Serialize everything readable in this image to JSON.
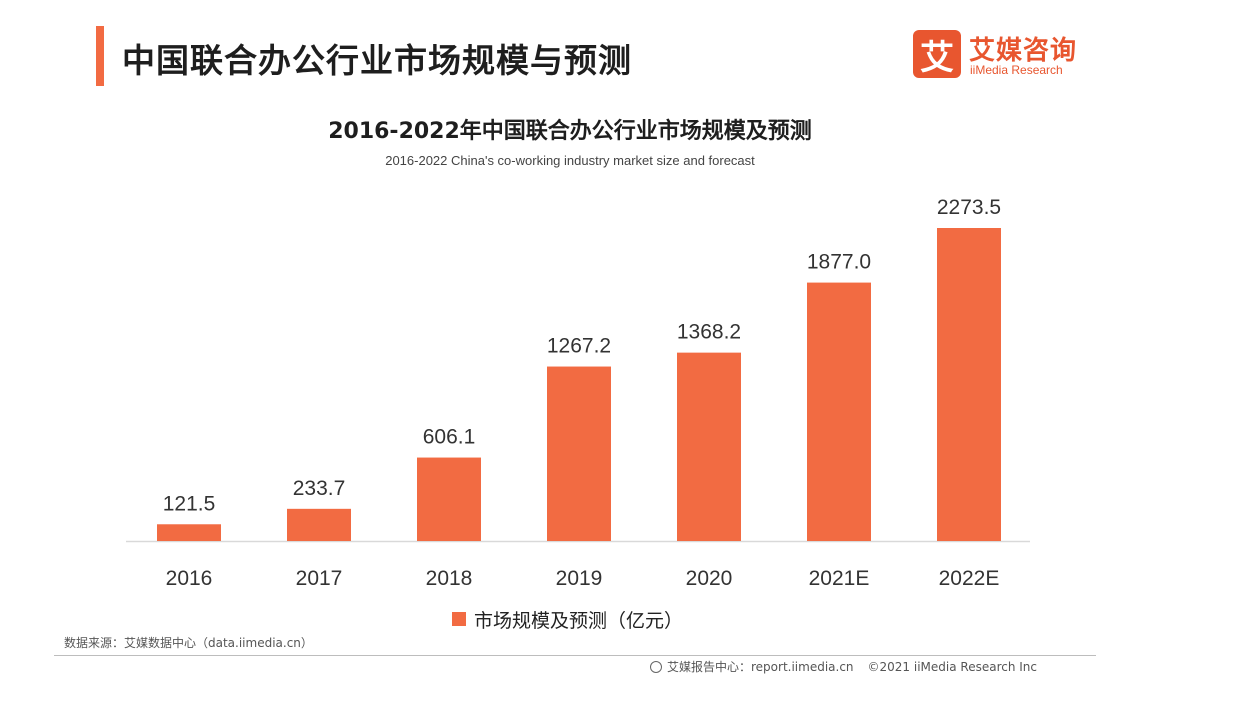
{
  "page": {
    "title": "中国联合办公行业市场规模与预测"
  },
  "logo": {
    "mark": "艾",
    "name_cn": "艾媒咨询",
    "name_en": "iiMedia Research"
  },
  "chart_data": {
    "type": "bar",
    "title": "2016-2022年中国联合办公行业市场规模及预测",
    "subtitle": "2016-2022 China's co-working industry market size and forecast",
    "categories": [
      "2016",
      "2017",
      "2018",
      "2019",
      "2020",
      "2021E",
      "2022E"
    ],
    "series": [
      {
        "name": "市场规模及预测（亿元）",
        "values": [
          121.5,
          233.7,
          606.1,
          1267.2,
          1368.2,
          1877.0,
          2273.5
        ],
        "labels": [
          "121.5",
          "233.7",
          "606.1",
          "1267.2",
          "1368.2",
          "1877.0",
          "2273.5"
        ]
      }
    ],
    "ylim": [
      0,
      2500
    ],
    "xlabel": "",
    "ylabel": "",
    "grid": false,
    "legend_position": "bottom",
    "color": "#f26b42"
  },
  "footer": {
    "source": "数据来源：艾媒数据中心（data.iimedia.cn）",
    "report_center": "艾媒报告中心：report.iimedia.cn",
    "copyright": "©2021  iiMedia Research  Inc"
  }
}
